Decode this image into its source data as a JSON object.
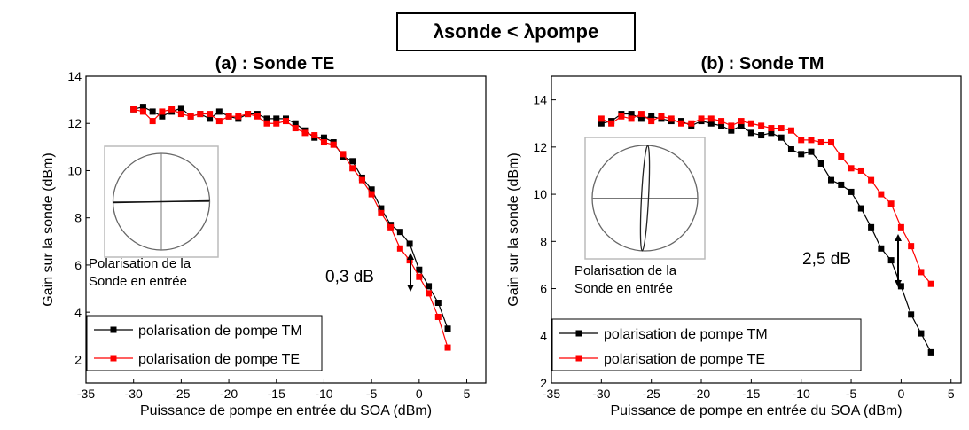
{
  "title": "λsonde < λpompe",
  "chart_data": [
    {
      "type": "line",
      "title": "(a) : Sonde TE",
      "x_label": "Puissance de pompe en entrée du SOA (dBm)",
      "y_label": "Gain sur la sonde (dBm)",
      "x": [
        -30,
        -29,
        -28,
        -27,
        -26,
        -25,
        -24,
        -23,
        -22,
        -21,
        -20,
        -19,
        -18,
        -17,
        -16,
        -15,
        -14,
        -13,
        -12,
        -11,
        -10,
        -9,
        -8,
        -7,
        -6,
        -5,
        -4,
        -3,
        -2,
        -1,
        0,
        1,
        2,
        3
      ],
      "series": [
        {
          "name": "polarisation de pompe TM",
          "color": "#000000",
          "values": [
            12.6,
            12.7,
            12.5,
            12.3,
            12.5,
            12.65,
            12.3,
            12.4,
            12.2,
            12.5,
            12.3,
            12.2,
            12.4,
            12.4,
            12.2,
            12.2,
            12.2,
            12.0,
            11.7,
            11.4,
            11.4,
            11.2,
            10.6,
            10.4,
            9.7,
            9.2,
            8.4,
            7.7,
            7.4,
            6.9,
            5.8,
            5.1,
            4.4,
            3.3
          ]
        },
        {
          "name": "polarisation de pompe TE",
          "color": "#ff0000",
          "values": [
            12.6,
            12.5,
            12.1,
            12.5,
            12.6,
            12.4,
            12.3,
            12.4,
            12.4,
            12.1,
            12.3,
            12.3,
            12.4,
            12.3,
            12.0,
            12.0,
            12.1,
            11.8,
            11.6,
            11.5,
            11.2,
            11.1,
            10.7,
            10.1,
            9.6,
            9.0,
            8.2,
            7.6,
            6.7,
            6.2,
            5.5,
            4.8,
            3.8,
            2.5
          ]
        }
      ],
      "xlim": [
        -35,
        7
      ],
      "xticks": [
        -35,
        -30,
        -25,
        -20,
        -15,
        -10,
        -5,
        0,
        5
      ],
      "ylim": [
        1,
        14
      ],
      "yticks": [
        2,
        4,
        6,
        8,
        10,
        12,
        14
      ],
      "legend": "lower left",
      "annotation": "0,3 dB",
      "inset_caption": [
        "Polarisation de la",
        "Sonde en entrée"
      ]
    },
    {
      "type": "line",
      "title": "(b) : Sonde TM",
      "x_label": "Puissance de pompe en entrée du SOA (dBm)",
      "y_label": "Gain sur la sonde (dBm)",
      "x": [
        -30,
        -29,
        -28,
        -27,
        -26,
        -25,
        -24,
        -23,
        -22,
        -21,
        -20,
        -19,
        -18,
        -17,
        -16,
        -15,
        -14,
        -13,
        -12,
        -11,
        -10,
        -9,
        -8,
        -7,
        -6,
        -5,
        -4,
        -3,
        -2,
        -1,
        0,
        1,
        2,
        3
      ],
      "series": [
        {
          "name": "polarisation de pompe TM",
          "color": "#000000",
          "values": [
            13.0,
            13.1,
            13.4,
            13.4,
            13.2,
            13.3,
            13.2,
            13.1,
            13.1,
            12.9,
            13.1,
            13.0,
            12.9,
            12.7,
            12.9,
            12.6,
            12.5,
            12.6,
            12.4,
            11.9,
            11.7,
            11.8,
            11.3,
            10.6,
            10.4,
            10.1,
            9.4,
            8.6,
            7.7,
            7.2,
            6.1,
            4.9,
            4.1,
            3.3
          ]
        },
        {
          "name": "polarisation de pompe TE",
          "color": "#ff0000",
          "values": [
            13.2,
            13.0,
            13.3,
            13.2,
            13.4,
            13.1,
            13.3,
            13.2,
            13.0,
            13.0,
            13.2,
            13.2,
            13.1,
            12.9,
            13.1,
            13.0,
            12.9,
            12.8,
            12.8,
            12.7,
            12.3,
            12.3,
            12.2,
            12.2,
            11.6,
            11.1,
            11.0,
            10.6,
            10.0,
            9.6,
            8.6,
            7.8,
            6.7,
            6.2
          ]
        }
      ],
      "xlim": [
        -35,
        6
      ],
      "xticks": [
        -35,
        -30,
        -25,
        -20,
        -15,
        -10,
        -5,
        0,
        5
      ],
      "ylim": [
        2,
        15
      ],
      "yticks": [
        2,
        4,
        6,
        8,
        10,
        12,
        14
      ],
      "legend": "lower left",
      "annotation": "2,5 dB",
      "inset_caption": [
        "Polarisation de la",
        "Sonde en entrée"
      ]
    }
  ]
}
